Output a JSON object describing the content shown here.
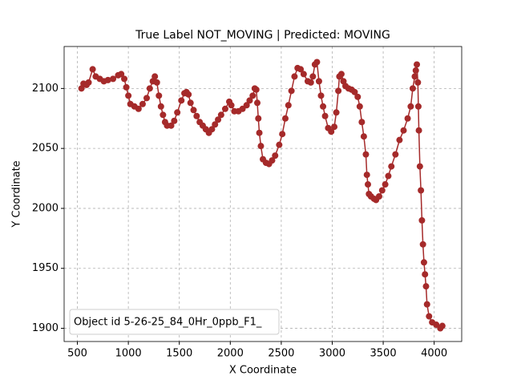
{
  "chart_data": {
    "type": "line",
    "title": "True Label NOT_MOVING | Predicted: MOVING",
    "x_label": "X Coordinate",
    "y_label": "Y Coordinate",
    "x": [
      540,
      560,
      590,
      610,
      650,
      680,
      720,
      760,
      800,
      850,
      900,
      930,
      960,
      980,
      1000,
      1020,
      1060,
      1100,
      1140,
      1180,
      1210,
      1240,
      1260,
      1280,
      1300,
      1320,
      1340,
      1360,
      1380,
      1420,
      1450,
      1480,
      1520,
      1550,
      1570,
      1590,
      1610,
      1640,
      1670,
      1700,
      1730,
      1760,
      1790,
      1820,
      1850,
      1880,
      1910,
      1950,
      1990,
      2010,
      2040,
      2080,
      2120,
      2160,
      2190,
      2220,
      2240,
      2255,
      2265,
      2275,
      2285,
      2300,
      2320,
      2350,
      2380,
      2410,
      2440,
      2480,
      2510,
      2540,
      2570,
      2600,
      2630,
      2660,
      2690,
      2720,
      2760,
      2790,
      2810,
      2830,
      2850,
      2870,
      2890,
      2910,
      2930,
      2960,
      2990,
      3020,
      3040,
      3060,
      3070,
      3090,
      3110,
      3130,
      3160,
      3190,
      3220,
      3250,
      3270,
      3290,
      3310,
      3330,
      3340,
      3350,
      3360,
      3380,
      3410,
      3430,
      3460,
      3490,
      3520,
      3550,
      3580,
      3620,
      3660,
      3700,
      3740,
      3770,
      3790,
      3810,
      3820,
      3830,
      3840,
      3845,
      3850,
      3860,
      3870,
      3880,
      3890,
      3900,
      3910,
      3920,
      3930,
      3950,
      3980,
      4020,
      4060,
      4080
    ],
    "series": [
      {
        "name": "Object id 5-26-25_84_0Hr_0ppb_F1_",
        "color": "#a52a2a",
        "values": [
          2100,
          2104,
          2103,
          2105,
          2116,
          2110,
          2108,
          2106,
          2107,
          2108,
          2111,
          2112,
          2108,
          2101,
          2094,
          2087,
          2085,
          2083,
          2087,
          2092,
          2100,
          2106,
          2110,
          2105,
          2094,
          2085,
          2078,
          2072,
          2069,
          2069,
          2073,
          2080,
          2090,
          2096,
          2097,
          2095,
          2088,
          2082,
          2077,
          2072,
          2069,
          2066,
          2063,
          2066,
          2070,
          2074,
          2078,
          2083,
          2089,
          2086,
          2081,
          2081,
          2083,
          2086,
          2090,
          2094,
          2100,
          2099,
          2088,
          2075,
          2063,
          2052,
          2041,
          2038,
          2037,
          2040,
          2044,
          2053,
          2062,
          2075,
          2086,
          2098,
          2110,
          2117,
          2116,
          2112,
          2106,
          2105,
          2110,
          2120,
          2122,
          2106,
          2094,
          2085,
          2077,
          2067,
          2064,
          2068,
          2080,
          2098,
          2110,
          2112,
          2106,
          2102,
          2100,
          2099,
          2097,
          2093,
          2085,
          2072,
          2060,
          2045,
          2028,
          2020,
          2012,
          2010,
          2008,
          2007,
          2010,
          2015,
          2020,
          2027,
          2035,
          2045,
          2057,
          2065,
          2075,
          2085,
          2100,
          2110,
          2115,
          2120,
          2105,
          2085,
          2065,
          2035,
          2015,
          1990,
          1970,
          1955,
          1945,
          1935,
          1920,
          1910,
          1905,
          1903,
          1900,
          1902
        ]
      }
    ],
    "xlim": [
      370,
      4270
    ],
    "ylim": [
      1889,
      2135
    ],
    "xticks": [
      500,
      1000,
      1500,
      2000,
      2500,
      3000,
      3500,
      4000
    ],
    "yticks": [
      1900,
      1950,
      2000,
      2050,
      2100
    ],
    "grid": true,
    "legend": "lower left"
  }
}
